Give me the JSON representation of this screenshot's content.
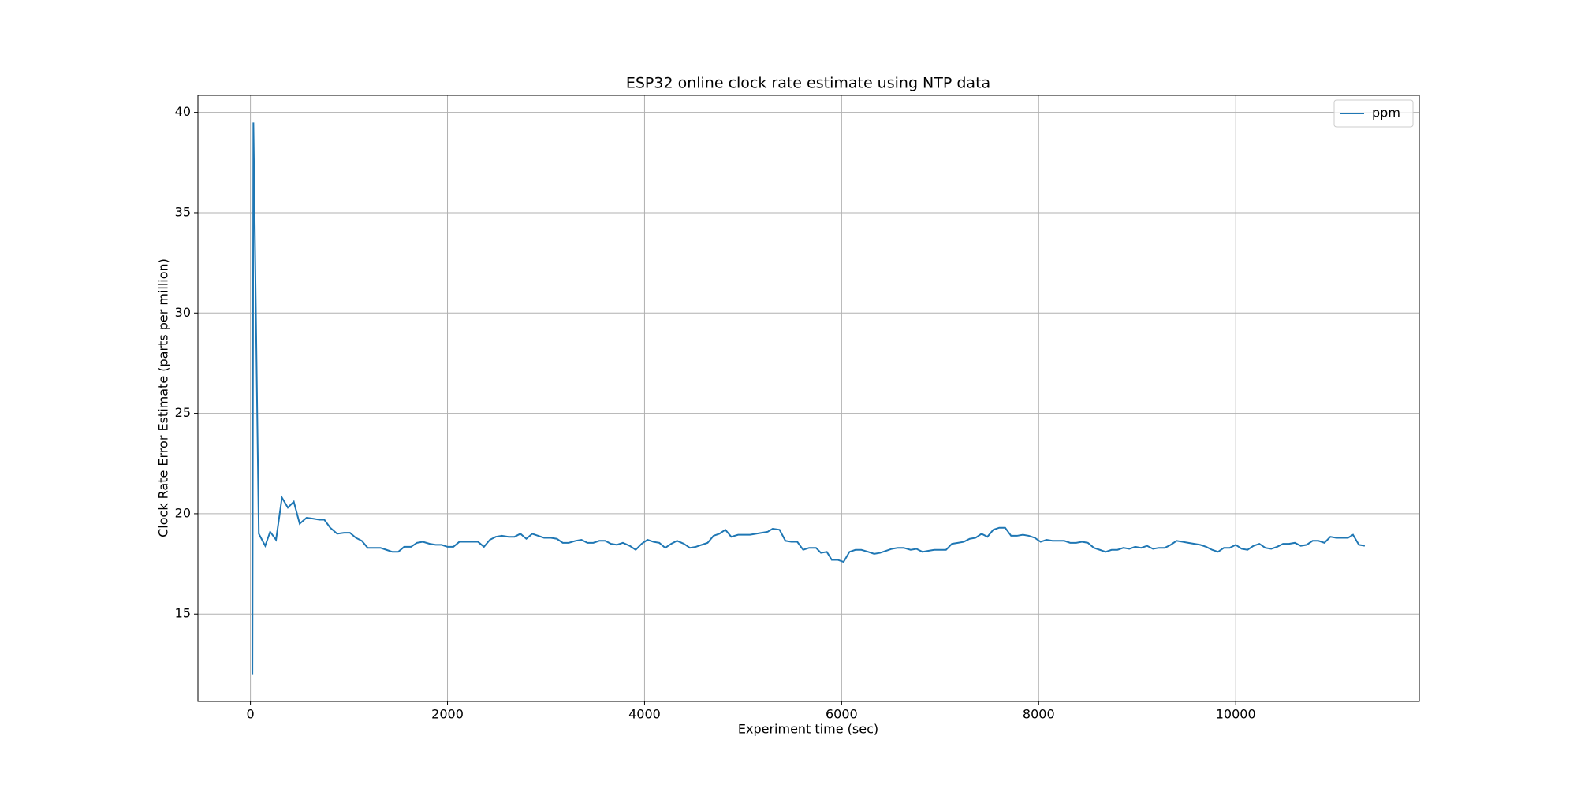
{
  "chart_data": {
    "type": "line",
    "title": "ESP32 online clock rate estimate using NTP data",
    "x_label": "Experiment time (sec)",
    "y_label": "Clock Rate Error Estimate (parts per million)",
    "x": [
      20,
      30,
      85,
      150,
      200,
      260,
      320,
      380,
      440,
      500,
      570,
      640,
      700,
      750,
      810,
      880,
      950,
      1010,
      1070,
      1130,
      1190,
      1260,
      1320,
      1380,
      1440,
      1500,
      1560,
      1630,
      1690,
      1750,
      1820,
      1880,
      1940,
      2000,
      2060,
      2120,
      2190,
      2250,
      2310,
      2370,
      2430,
      2490,
      2550,
      2620,
      2680,
      2740,
      2800,
      2860,
      2920,
      2980,
      3050,
      3110,
      3170,
      3230,
      3300,
      3360,
      3420,
      3480,
      3540,
      3600,
      3660,
      3720,
      3780,
      3850,
      3910,
      3970,
      4030,
      4090,
      4150,
      4210,
      4270,
      4330,
      4400,
      4460,
      4520,
      4580,
      4640,
      4700,
      4760,
      4820,
      4880,
      4950,
      5010,
      5070,
      5130,
      5190,
      5250,
      5300,
      5370,
      5430,
      5490,
      5550,
      5610,
      5670,
      5740,
      5790,
      5850,
      5900,
      5960,
      6020,
      6080,
      6140,
      6200,
      6270,
      6330,
      6390,
      6450,
      6510,
      6570,
      6630,
      6700,
      6760,
      6820,
      6880,
      6940,
      7000,
      7060,
      7120,
      7180,
      7240,
      7300,
      7360,
      7420,
      7480,
      7540,
      7600,
      7660,
      7720,
      7780,
      7840,
      7900,
      7960,
      8020,
      8080,
      8140,
      8200,
      8260,
      8320,
      8380,
      8440,
      8500,
      8560,
      8620,
      8680,
      8740,
      8800,
      8860,
      8920,
      8980,
      9040,
      9100,
      9160,
      9220,
      9280,
      9340,
      9400,
      9460,
      9520,
      9580,
      9640,
      9700,
      9760,
      9820,
      9880,
      9940,
      10000,
      10060,
      10120,
      10180,
      10240,
      10300,
      10360,
      10420,
      10480,
      10540,
      10600,
      10660,
      10720,
      10780,
      10840,
      10900,
      10960,
      11020,
      11080,
      11140,
      11190,
      11250,
      11310
    ],
    "series": [
      {
        "name": "ppm",
        "color": "#1f77b4",
        "values": [
          12.0,
          39.5,
          19.0,
          18.4,
          19.1,
          18.7,
          20.8,
          20.3,
          20.6,
          19.5,
          19.8,
          19.75,
          19.7,
          19.7,
          19.3,
          19.0,
          19.05,
          19.05,
          18.8,
          18.65,
          18.3,
          18.3,
          18.3,
          18.2,
          18.1,
          18.1,
          18.35,
          18.35,
          18.55,
          18.6,
          18.5,
          18.45,
          18.45,
          18.35,
          18.35,
          18.6,
          18.6,
          18.6,
          18.6,
          18.35,
          18.7,
          18.85,
          18.9,
          18.85,
          18.85,
          19.0,
          18.75,
          19.0,
          18.9,
          18.8,
          18.8,
          18.75,
          18.55,
          18.55,
          18.65,
          18.7,
          18.55,
          18.55,
          18.65,
          18.65,
          18.5,
          18.45,
          18.55,
          18.4,
          18.2,
          18.5,
          18.7,
          18.6,
          18.55,
          18.3,
          18.5,
          18.65,
          18.5,
          18.3,
          18.35,
          18.45,
          18.55,
          18.9,
          19.0,
          19.2,
          18.85,
          18.95,
          18.95,
          18.95,
          19.0,
          19.05,
          19.1,
          19.25,
          19.2,
          18.65,
          18.6,
          18.6,
          18.2,
          18.3,
          18.3,
          18.05,
          18.1,
          17.7,
          17.7,
          17.6,
          18.1,
          18.2,
          18.2,
          18.1,
          18.0,
          18.05,
          18.15,
          18.25,
          18.3,
          18.3,
          18.2,
          18.25,
          18.1,
          18.15,
          18.2,
          18.2,
          18.2,
          18.5,
          18.55,
          18.6,
          18.75,
          18.8,
          19.0,
          18.85,
          19.2,
          19.3,
          19.3,
          18.9,
          18.9,
          18.95,
          18.9,
          18.8,
          18.6,
          18.7,
          18.65,
          18.65,
          18.65,
          18.55,
          18.55,
          18.6,
          18.55,
          18.3,
          18.2,
          18.1,
          18.2,
          18.2,
          18.3,
          18.25,
          18.35,
          18.3,
          18.4,
          18.25,
          18.3,
          18.3,
          18.45,
          18.65,
          18.6,
          18.55,
          18.5,
          18.45,
          18.35,
          18.2,
          18.1,
          18.3,
          18.3,
          18.45,
          18.25,
          18.2,
          18.4,
          18.5,
          18.3,
          18.25,
          18.35,
          18.5,
          18.5,
          18.55,
          18.4,
          18.45,
          18.65,
          18.65,
          18.55,
          18.85,
          18.8,
          18.8,
          18.8,
          18.95,
          18.45,
          18.4
        ]
      }
    ],
    "xlim": [
      -533,
      11863
    ],
    "ylim": [
      10.65,
      40.85
    ],
    "xticks": [
      0,
      2000,
      4000,
      6000,
      8000,
      10000
    ],
    "yticks": [
      15,
      20,
      25,
      30,
      35,
      40
    ],
    "grid": true,
    "legend": "upper right"
  }
}
